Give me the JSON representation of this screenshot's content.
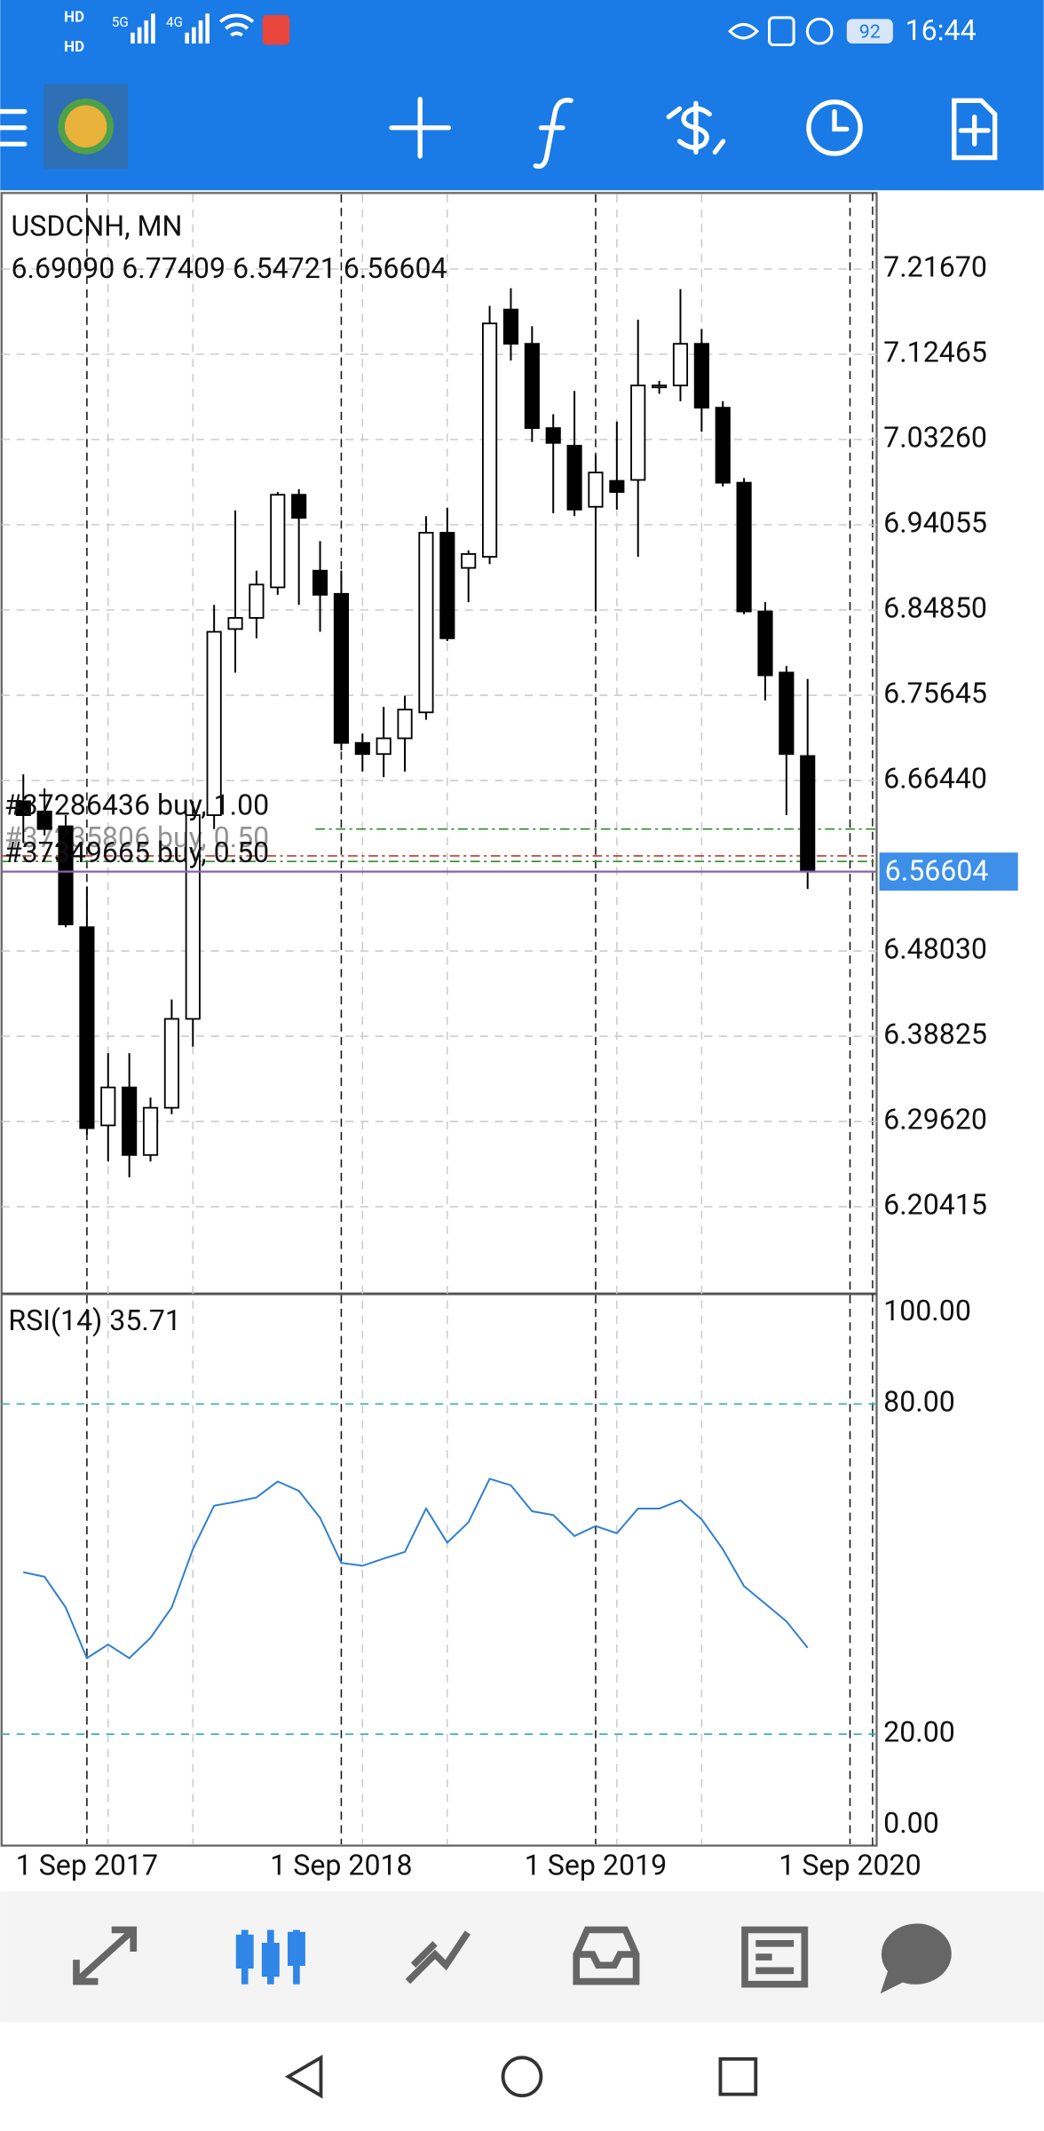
{
  "status_bar": {
    "time": "16:44",
    "battery": "92",
    "signal_labels": [
      "HD",
      "HD",
      "5G",
      "4G"
    ]
  },
  "chart_data": {
    "type": "candlestick",
    "title": "USDCNH, MN",
    "ohlc_label": "6.69090 6.77409 6.54721 6.56604",
    "open": [
      6.642,
      6.631,
      6.615,
      6.506,
      6.292,
      6.333,
      6.26,
      6.311,
      6.407,
      6.627,
      6.828,
      6.84,
      6.873,
      6.973,
      6.891,
      6.866,
      6.705,
      6.693,
      6.71,
      6.738,
      6.932,
      6.894,
      6.906,
      7.173,
      7.136,
      7.045,
      7.026,
      6.96,
      6.988,
      6.989,
      7.089,
      7.091,
      7.136,
      7.067,
      6.986,
      6.847,
      6.781,
      6.6909
    ],
    "high": [
      6.671,
      6.656,
      6.627,
      6.55,
      6.37,
      6.37,
      6.322,
      6.428,
      6.642,
      6.854,
      6.956,
      6.891,
      6.976,
      6.979,
      6.923,
      6.891,
      6.715,
      6.744,
      6.756,
      6.95,
      6.959,
      6.913,
      7.177,
      7.196,
      7.155,
      7.06,
      7.085,
      7.016,
      7.052,
      7.162,
      7.096,
      7.195,
      7.152,
      7.074,
      6.991,
      6.857,
      6.788,
      6.77409
    ],
    "low": [
      6.597,
      6.605,
      6.506,
      6.282,
      6.253,
      6.236,
      6.253,
      6.304,
      6.377,
      6.612,
      6.781,
      6.818,
      6.865,
      6.854,
      6.825,
      6.697,
      6.674,
      6.668,
      6.674,
      6.73,
      6.815,
      6.857,
      6.898,
      7.118,
      7.03,
      6.953,
      6.95,
      6.847,
      6.957,
      6.906,
      7.082,
      7.074,
      7.041,
      6.982,
      6.844,
      6.751,
      6.627,
      6.54721
    ],
    "close": [
      6.627,
      6.612,
      6.509,
      6.289,
      6.333,
      6.26,
      6.311,
      6.407,
      6.627,
      6.825,
      6.84,
      6.876,
      6.973,
      6.948,
      6.865,
      6.705,
      6.693,
      6.71,
      6.741,
      6.932,
      6.818,
      6.909,
      7.158,
      7.136,
      7.045,
      7.029,
      6.957,
      6.997,
      6.976,
      7.091,
      7.091,
      7.136,
      7.067,
      6.986,
      6.847,
      6.778,
      6.693,
      6.56604
    ],
    "ylim": [
      6.1101,
      7.2974
    ],
    "yticks": [
      {
        "value": 7.2167,
        "label": "7.21670"
      },
      {
        "value": 7.12465,
        "label": "7.12465"
      },
      {
        "value": 7.0326,
        "label": "7.03260"
      },
      {
        "value": 6.94055,
        "label": "6.94055"
      },
      {
        "value": 6.8485,
        "label": "6.84850"
      },
      {
        "value": 6.75645,
        "label": "6.75645"
      },
      {
        "value": 6.6644,
        "label": "6.66440"
      },
      {
        "value": 6.4803,
        "label": "6.48030"
      },
      {
        "value": 6.38825,
        "label": "6.38825"
      },
      {
        "value": 6.2962,
        "label": "6.29620"
      },
      {
        "value": 6.20415,
        "label": "6.20415"
      }
    ],
    "x_labels": [
      "1 Sep 2017",
      "1 Sep 2018",
      "1 Sep 2019",
      "1 Sep 2020"
    ],
    "bid": 6.56604,
    "bid_label": "6.56604",
    "orders": [
      {
        "label": "#37286436 buy, 1.00",
        "price": 6.612
      },
      {
        "label": "#37235806 buy, 0.50",
        "price": 6.583
      },
      {
        "label": "#37349665 buy, 0.50",
        "price": 6.577
      }
    ],
    "grid": true,
    "bull_color": "#ffffff",
    "bear_color": "#000000"
  },
  "indicator": {
    "type": "line",
    "title": "RSI(14) 35.71",
    "values": [
      49.4,
      48.6,
      43.0,
      33.8,
      36.3,
      33.8,
      37.5,
      43.0,
      53.6,
      61.5,
      62.2,
      63.0,
      65.9,
      64.2,
      59.3,
      51.1,
      50.6,
      51.9,
      53.1,
      61.0,
      54.8,
      58.5,
      66.4,
      65.2,
      60.5,
      59.8,
      56.0,
      57.8,
      56.5,
      61.0,
      61.0,
      62.5,
      59.0,
      53.6,
      46.9,
      43.7,
      40.5,
      35.71
    ],
    "ylim": [
      0,
      100
    ],
    "yticks": [
      {
        "value": 100,
        "label": "100.00"
      },
      {
        "value": 80,
        "label": "80.00"
      },
      {
        "value": 20,
        "label": "20.00"
      },
      {
        "value": 0,
        "label": "0.00"
      }
    ],
    "color": "#2f7fd0",
    "level_color": "#2ab3a0"
  }
}
